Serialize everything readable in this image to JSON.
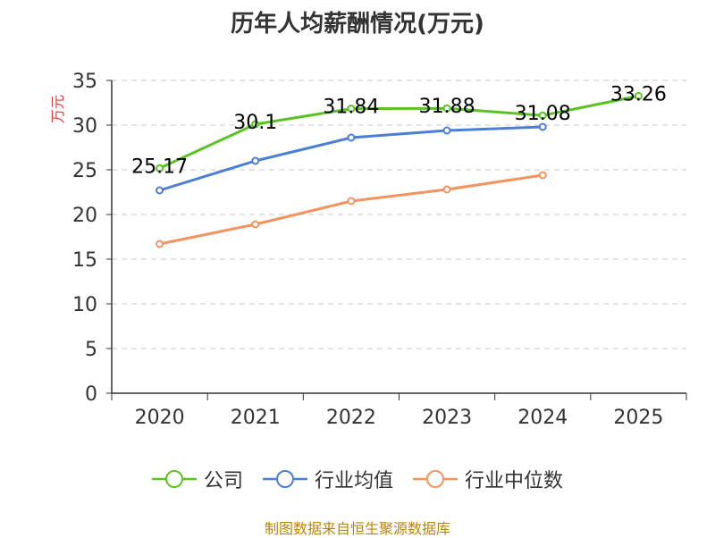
{
  "chart_data": {
    "type": "line",
    "title": "历年人均薪酬情况(万元)",
    "ylabel": "万元",
    "xlabel": "",
    "categories": [
      "2020",
      "2021",
      "2022",
      "2023",
      "2024",
      "2025"
    ],
    "ylim": [
      0,
      35
    ],
    "yticks": [
      0,
      5,
      10,
      15,
      20,
      25,
      30,
      35
    ],
    "grid": true,
    "legend_position": "bottom",
    "series": [
      {
        "name": "公司",
        "color": "#5bc224",
        "values": [
          25.17,
          30.1,
          31.84,
          31.88,
          31.08,
          33.26
        ],
        "labels": [
          "25.17",
          "30.1",
          "31.84",
          "31.88",
          "31.08",
          "33.26"
        ]
      },
      {
        "name": "行业均值",
        "color": "#4a7fd4",
        "values": [
          22.7,
          26.0,
          28.6,
          29.4,
          29.8,
          null
        ]
      },
      {
        "name": "行业中位数",
        "color": "#f5925e",
        "values": [
          16.7,
          18.9,
          21.5,
          22.8,
          24.4,
          null
        ]
      }
    ]
  },
  "footer": {
    "source": "制图数据来自恒生聚源数据库"
  }
}
